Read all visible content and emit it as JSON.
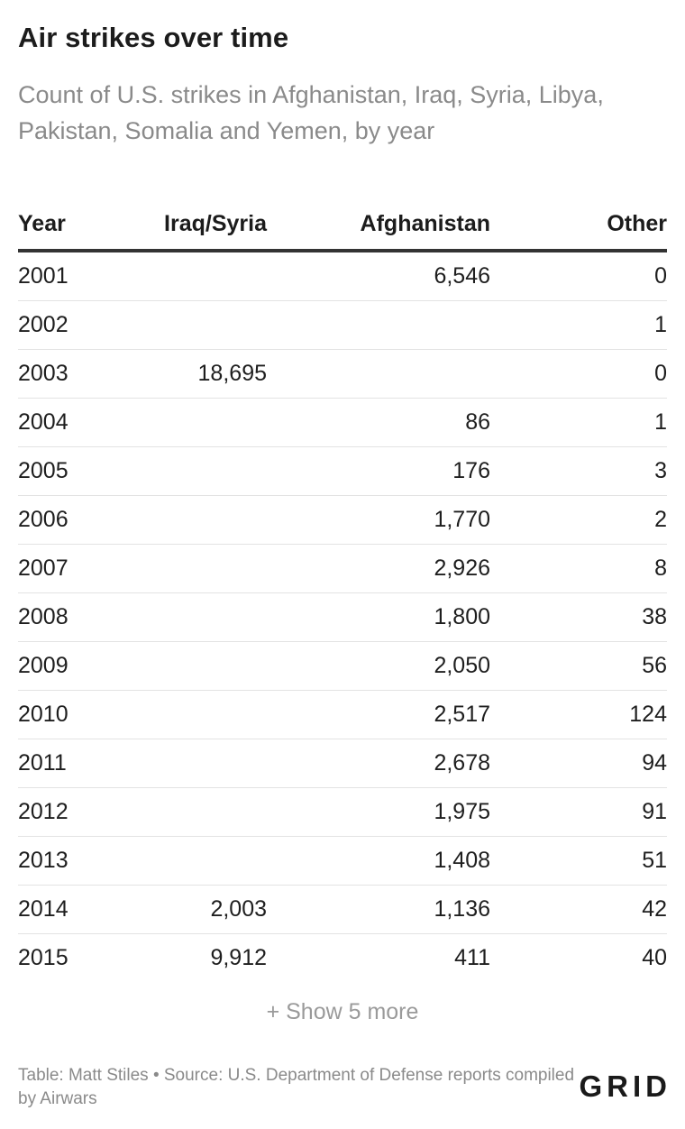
{
  "header": {
    "title": "Air strikes over time",
    "subtitle": "Count of U.S. strikes in Afghanistan, Iraq, Syria, Libya, Pakistan, Somalia and Yemen, by year"
  },
  "chart_data": {
    "type": "table",
    "title": "Air strikes over time",
    "subtitle": "Count of U.S. strikes in Afghanistan, Iraq, Syria, Libya, Pakistan, Somalia and Yemen, by year",
    "columns": [
      "Year",
      "Iraq/Syria",
      "Afghanistan",
      "Other"
    ],
    "rows": [
      [
        "2001",
        "",
        "6,546",
        "0"
      ],
      [
        "2002",
        "",
        "",
        "1"
      ],
      [
        "2003",
        "18,695",
        "",
        "0"
      ],
      [
        "2004",
        "",
        "86",
        "1"
      ],
      [
        "2005",
        "",
        "176",
        "3"
      ],
      [
        "2006",
        "",
        "1,770",
        "2"
      ],
      [
        "2007",
        "",
        "2,926",
        "8"
      ],
      [
        "2008",
        "",
        "1,800",
        "38"
      ],
      [
        "2009",
        "",
        "2,050",
        "56"
      ],
      [
        "2010",
        "",
        "2,517",
        "124"
      ],
      [
        "2011",
        "",
        "2,678",
        "94"
      ],
      [
        "2012",
        "",
        "1,975",
        "91"
      ],
      [
        "2013",
        "",
        "1,408",
        "51"
      ],
      [
        "2014",
        "2,003",
        "1,136",
        "42"
      ],
      [
        "2015",
        "9,912",
        "411",
        "40"
      ]
    ]
  },
  "controls": {
    "show_more_label": "+ Show 5 more"
  },
  "footer": {
    "note": "Table: Matt Stiles • Source: U.S. Department of Defense reports compiled by Airwars",
    "logo_text": "GRID"
  }
}
